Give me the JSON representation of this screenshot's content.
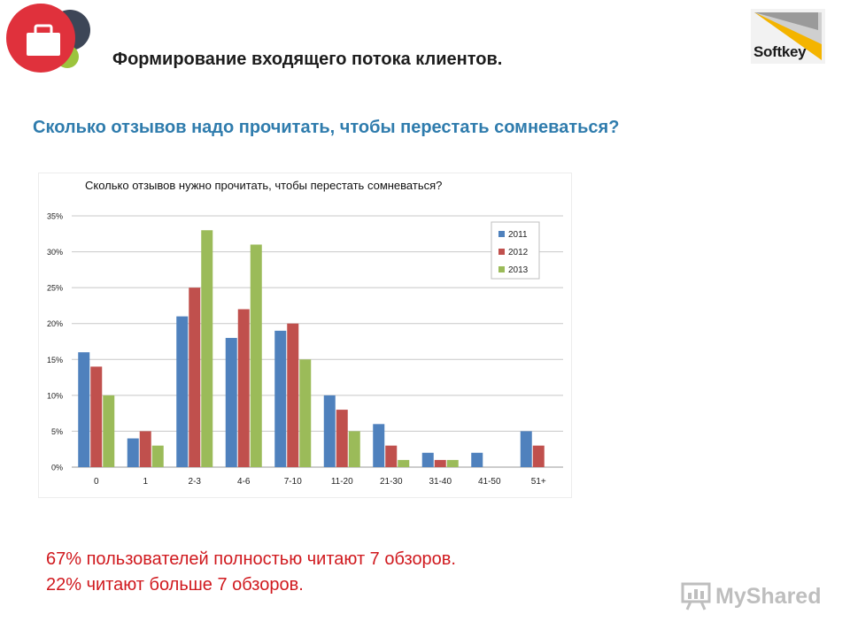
{
  "header": {
    "title": "Формирование входящего потока клиентов."
  },
  "brand": {
    "name": "Softkey"
  },
  "subtitle": "Сколько отзывов надо прочитать, чтобы перестать сомневаться?",
  "chart_data": {
    "type": "bar",
    "title": "Сколько отзывов нужно прочитать, чтобы перестать сомневаться?",
    "xlabel": "",
    "ylabel": "",
    "categories": [
      "0",
      "1",
      "2-3",
      "4-6",
      "7-10",
      "11-20",
      "21-30",
      "31-40",
      "41-50",
      "51+"
    ],
    "series": [
      {
        "name": "2011",
        "color": "#4f81bd",
        "values": [
          16,
          4,
          21,
          18,
          19,
          10,
          6,
          2,
          2,
          5
        ]
      },
      {
        "name": "2012",
        "color": "#c0504d",
        "values": [
          14,
          5,
          25,
          22,
          20,
          8,
          3,
          1,
          0,
          3
        ]
      },
      {
        "name": "2013",
        "color": "#9bbb59",
        "values": [
          10,
          3,
          33,
          31,
          15,
          5,
          1,
          1,
          0,
          0
        ]
      }
    ],
    "ylim": [
      0,
      35
    ],
    "yticks": [
      "0%",
      "5%",
      "10%",
      "15%",
      "20%",
      "25%",
      "30%",
      "35%"
    ],
    "grid": true,
    "legend": "top-right"
  },
  "footer": {
    "line1": "67% пользователей полностью читают 7 обзоров.",
    "line2": "22% читают больше 7 обзоров."
  },
  "watermark": {
    "text": "MyShared"
  }
}
